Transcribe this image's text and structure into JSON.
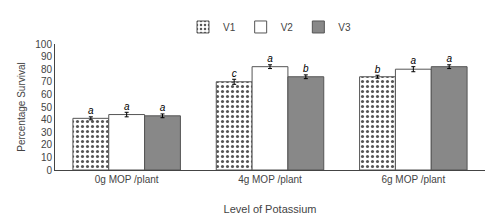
{
  "chart_data": {
    "type": "bar",
    "xlabel": "Level of Potassium",
    "ylabel": "Percentage Survival",
    "categories": [
      "0g MOP /plant",
      "4g MOP /plant",
      "6g MOP /plant"
    ],
    "series": [
      {
        "name": "V1",
        "color": "white",
        "marker": "dots",
        "values": [
          41,
          70,
          74
        ],
        "errors": [
          1.2,
          2.0,
          1.2
        ],
        "annotations": [
          "a",
          "c",
          "b"
        ]
      },
      {
        "name": "V2",
        "color": "white",
        "values": [
          44,
          82,
          80
        ],
        "errors": [
          1.8,
          1.5,
          2.0
        ],
        "annotations": [
          "a",
          "a",
          "a"
        ]
      },
      {
        "name": "V3",
        "color": "#888888",
        "values": [
          43,
          74,
          82
        ],
        "errors": [
          1.5,
          1.5,
          1.5
        ],
        "annotations": [
          "a",
          "b",
          "a"
        ]
      }
    ],
    "ylim": [
      0,
      100
    ],
    "yticks": [
      0,
      10,
      20,
      30,
      40,
      50,
      60,
      70,
      80,
      90,
      100
    ],
    "grid": false,
    "legend": "top"
  }
}
